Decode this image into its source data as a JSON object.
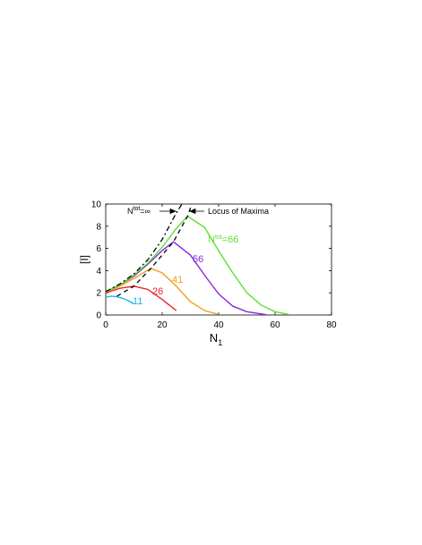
{
  "chart_data": {
    "type": "line",
    "xlabel": "N",
    "xlabel_sub": "1",
    "ylabel": "[I]",
    "xlim": [
      0,
      80
    ],
    "xticks": [
      0,
      20,
      40,
      60,
      80
    ],
    "ylim": [
      0,
      10
    ],
    "yticks": [
      0,
      2,
      4,
      6,
      8,
      10
    ],
    "series": [
      {
        "name": "11",
        "color": "#17b6e6",
        "x": [
          0,
          2,
          4,
          6,
          8,
          10
        ],
        "values": [
          1.6,
          1.7,
          1.65,
          1.5,
          1.3,
          1.0
        ]
      },
      {
        "name": "26",
        "color": "#e8262a",
        "x": [
          0,
          5,
          10,
          15,
          20,
          25
        ],
        "values": [
          2.0,
          2.4,
          2.6,
          2.3,
          1.4,
          0.4
        ]
      },
      {
        "name": "41",
        "color": "#f39c1f",
        "x": [
          0,
          5,
          10,
          16,
          20,
          25,
          30,
          35,
          40
        ],
        "values": [
          2.05,
          2.6,
          3.3,
          4.2,
          3.8,
          2.6,
          1.2,
          0.4,
          0.05
        ]
      },
      {
        "name": "56",
        "color": "#8a2be2",
        "x": [
          0,
          5,
          10,
          15,
          20,
          24,
          30,
          35,
          40,
          45,
          50,
          57
        ],
        "values": [
          2.1,
          2.7,
          3.5,
          4.6,
          5.8,
          6.6,
          5.4,
          3.6,
          1.9,
          0.8,
          0.3,
          0.02
        ]
      },
      {
        "name": "=66",
        "name_prefix": "N",
        "name_sup": "tot",
        "color": "#5ee02e",
        "x": [
          0,
          5,
          10,
          15,
          20,
          25,
          29,
          35,
          40,
          45,
          50,
          55,
          60,
          65
        ],
        "values": [
          2.1,
          2.7,
          3.6,
          4.7,
          6.1,
          7.8,
          8.9,
          7.9,
          5.8,
          3.8,
          2.0,
          0.9,
          0.3,
          0.05
        ]
      },
      {
        "name": "=∞",
        "name_prefix": "N",
        "name_sup": "tot",
        "color": "#000000",
        "dash": "6 3 2 3",
        "x": [
          0,
          5,
          10,
          15,
          20,
          25,
          27
        ],
        "values": [
          2.1,
          2.8,
          3.7,
          5.0,
          6.8,
          9.2,
          10
        ]
      },
      {
        "name": "Locus of Maxima",
        "color": "#000000",
        "dash": "5 4",
        "x": [
          4,
          10,
          16,
          24,
          29,
          30.5
        ],
        "values": [
          1.7,
          2.6,
          4.2,
          6.6,
          8.9,
          10
        ]
      }
    ]
  }
}
